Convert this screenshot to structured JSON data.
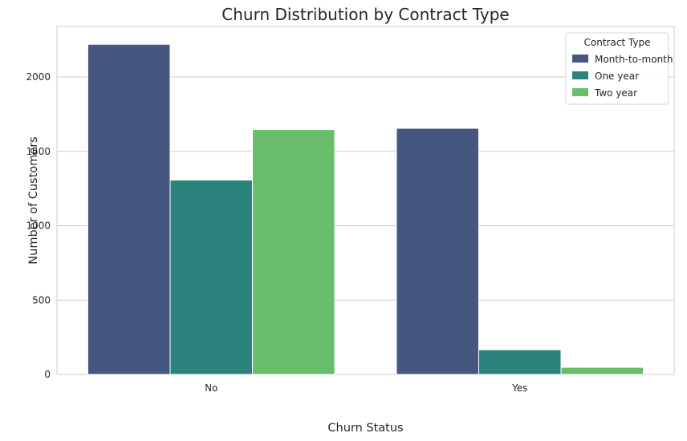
{
  "chart_data": {
    "type": "bar",
    "title": "Churn Distribution by Contract Type",
    "xlabel": "Churn Status",
    "ylabel": "Number of Customers",
    "categories": [
      "No",
      "Yes"
    ],
    "series": [
      {
        "name": "Month-to-month",
        "values": [
          2220,
          1655
        ],
        "color": "#45577f"
      },
      {
        "name": "One year",
        "values": [
          1307,
          166
        ],
        "color": "#2b837c"
      },
      {
        "name": "Two year",
        "values": [
          1647,
          48
        ],
        "color": "#6abd6b"
      }
    ],
    "ylim": [
      0,
      2340
    ],
    "yticks": [
      0,
      500,
      1000,
      1500,
      2000
    ],
    "grid": true,
    "legend": {
      "title": "Contract Type",
      "position": "top-right"
    }
  }
}
